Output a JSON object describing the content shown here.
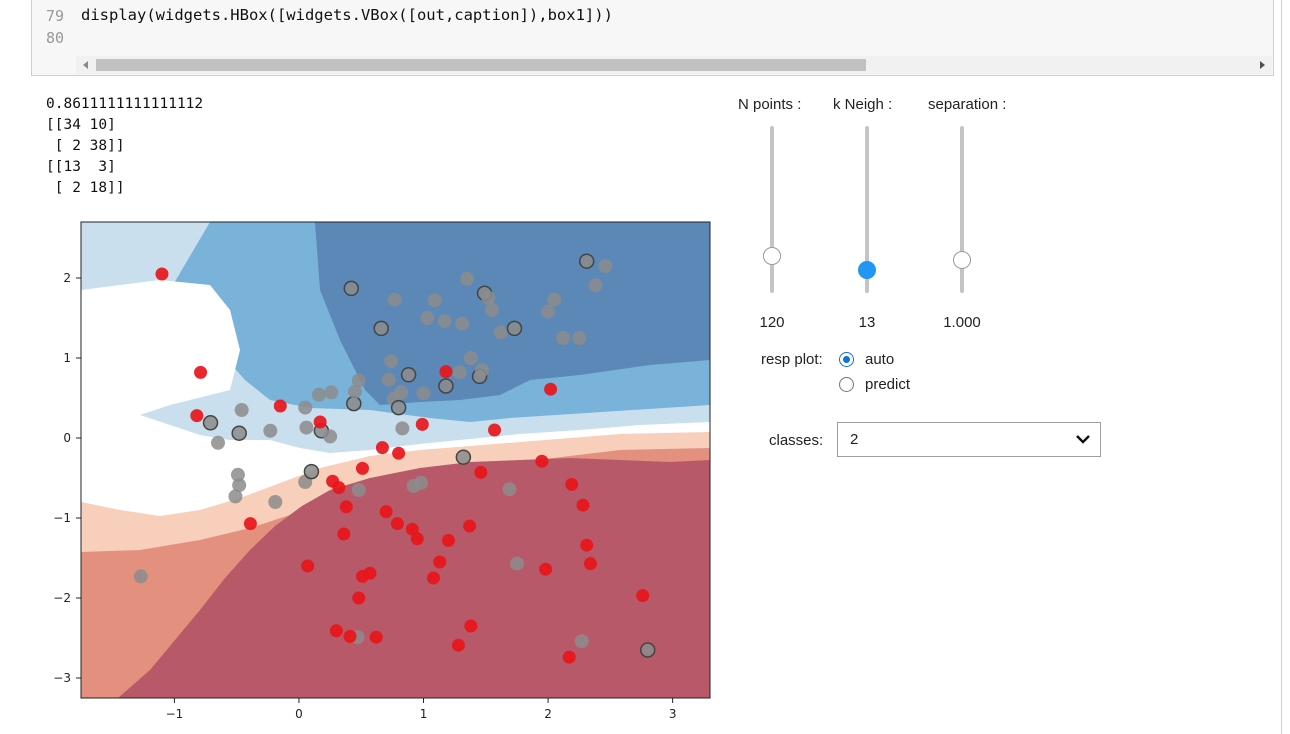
{
  "code": {
    "lines": [
      {
        "num": "79",
        "text": "display(widgets.HBox([widgets.VBox([out,caption]),box1]))"
      },
      {
        "num": "80",
        "text": ""
      }
    ]
  },
  "output": {
    "text": "0.8611111111111112\n[[34 10]\n [ 2 38]]\n[[13  3]\n [ 2 18]]"
  },
  "sliders": [
    {
      "label": "N points :",
      "value_text": "120",
      "fraction": 0.22,
      "active": false
    },
    {
      "label": "k Neigh :",
      "value_text": "13",
      "fraction": 0.14,
      "active": true
    },
    {
      "label": "separation :",
      "value_text": "1.000",
      "fraction": 0.2,
      "active": false
    }
  ],
  "resp_plot": {
    "label": "resp plot:",
    "options": [
      {
        "label": "auto",
        "checked": true
      },
      {
        "label": "predict",
        "checked": false
      }
    ]
  },
  "classes": {
    "label": "classes:",
    "value": "2"
  },
  "chart_data": {
    "type": "scatter",
    "title": "",
    "xlabel": "",
    "ylabel": "",
    "xlim": [
      -1.75,
      3.3
    ],
    "ylim": [
      -3.25,
      2.7
    ],
    "xticks": [
      -1,
      0,
      1,
      2,
      3
    ],
    "yticks": [
      -3,
      -2,
      -1,
      0,
      1,
      2
    ],
    "xtick_labels": [
      "−1",
      "0",
      "1",
      "2",
      "3"
    ],
    "ytick_labels": [
      "−3",
      "−2",
      "−1",
      "0",
      "1",
      "2"
    ],
    "background": "k-nearest-neighbour decision regions, red (negative) to blue (positive)",
    "colors": {
      "red_dark": "#b8596a",
      "red_mid": "#e3907f",
      "red_light": "#f7cfba",
      "neutral": "#ffffff",
      "blue_light": "#c9dfee",
      "blue_mid": "#79b3d9",
      "blue_dark": "#5b88b6",
      "red_point": "#e8151b",
      "gray_point": "#8c8c8c"
    },
    "series": [
      {
        "name": "",
        "color": "#e8151b",
        "points": [
          [
            -1.1,
            2.05
          ],
          [
            -0.79,
            0.82
          ],
          [
            -0.82,
            0.28
          ],
          [
            -0.15,
            0.4
          ],
          [
            0.17,
            0.2
          ],
          [
            0.8,
            -0.19
          ],
          [
            0.67,
            -0.12
          ],
          [
            0.51,
            -0.38
          ],
          [
            0.38,
            -0.86
          ],
          [
            0.7,
            -0.92
          ],
          [
            0.79,
            -1.07
          ],
          [
            0.91,
            -1.14
          ],
          [
            0.95,
            -1.26
          ],
          [
            0.36,
            -1.2
          ],
          [
            0.07,
            -1.6
          ],
          [
            0.48,
            -2.0
          ],
          [
            0.51,
            -1.73
          ],
          [
            0.57,
            -1.69
          ],
          [
            0.3,
            -2.41
          ],
          [
            0.41,
            -2.48
          ],
          [
            0.62,
            -2.49
          ],
          [
            1.08,
            -1.75
          ],
          [
            1.13,
            -1.55
          ],
          [
            1.2,
            -1.28
          ],
          [
            1.37,
            -1.1
          ],
          [
            1.38,
            -2.35
          ],
          [
            1.28,
            -2.59
          ],
          [
            1.46,
            -0.43
          ],
          [
            1.98,
            -1.64
          ],
          [
            2.17,
            -2.74
          ],
          [
            2.19,
            -0.58
          ],
          [
            2.28,
            -0.84
          ],
          [
            2.31,
            -1.34
          ],
          [
            2.34,
            -1.57
          ],
          [
            2.76,
            -1.97
          ],
          [
            0.27,
            -0.54
          ],
          [
            0.32,
            -0.62
          ],
          [
            0.99,
            0.17
          ],
          [
            1.57,
            0.1
          ],
          [
            1.95,
            -0.29
          ],
          [
            2.02,
            0.61
          ],
          [
            1.18,
            0.83
          ],
          [
            -0.39,
            -1.07
          ]
        ]
      },
      {
        "name": "",
        "color": "#8c8c8c",
        "points": [
          [
            0.42,
            1.87
          ],
          [
            0.77,
            1.73
          ],
          [
            1.09,
            1.72
          ],
          [
            1.35,
            1.99
          ],
          [
            1.49,
            1.81
          ],
          [
            1.52,
            1.75
          ],
          [
            1.55,
            1.6
          ],
          [
            1.62,
            1.32
          ],
          [
            1.73,
            1.37
          ],
          [
            2.0,
            1.58
          ],
          [
            2.05,
            1.73
          ],
          [
            2.12,
            1.25
          ],
          [
            2.31,
            2.21
          ],
          [
            2.38,
            1.91
          ],
          [
            2.46,
            2.15
          ],
          [
            2.25,
            1.25
          ],
          [
            0.66,
            1.37
          ],
          [
            0.72,
            0.73
          ],
          [
            0.74,
            0.96
          ],
          [
            0.82,
            0.57
          ],
          [
            0.88,
            0.79
          ],
          [
            1.0,
            0.56
          ],
          [
            1.03,
            1.5
          ],
          [
            1.17,
            1.46
          ],
          [
            1.18,
            0.65
          ],
          [
            1.29,
            0.82
          ],
          [
            1.31,
            1.43
          ],
          [
            1.38,
            1.0
          ],
          [
            1.45,
            0.77
          ],
          [
            1.47,
            0.85
          ],
          [
            0.16,
            0.54
          ],
          [
            0.26,
            0.57
          ],
          [
            0.44,
            0.43
          ],
          [
            0.45,
            0.58
          ],
          [
            0.48,
            0.72
          ],
          [
            0.76,
            0.49
          ],
          [
            0.8,
            0.38
          ],
          [
            0.83,
            0.12
          ],
          [
            0.05,
            0.38
          ],
          [
            0.06,
            0.13
          ],
          [
            0.18,
            0.09
          ],
          [
            0.25,
            0.02
          ],
          [
            -0.23,
            0.09
          ],
          [
            -0.46,
            0.35
          ],
          [
            -0.48,
            0.06
          ],
          [
            -0.49,
            -0.46
          ],
          [
            -0.48,
            -0.59
          ],
          [
            -0.51,
            -0.73
          ],
          [
            -0.71,
            0.19
          ],
          [
            -0.65,
            -0.06
          ],
          [
            -0.19,
            -0.8
          ],
          [
            0.05,
            -0.55
          ],
          [
            0.1,
            -0.42
          ],
          [
            0.48,
            -0.65
          ],
          [
            0.92,
            -0.6
          ],
          [
            0.98,
            -0.56
          ],
          [
            1.32,
            -0.24
          ],
          [
            1.69,
            -0.64
          ],
          [
            1.75,
            -1.57
          ],
          [
            2.27,
            -2.54
          ],
          [
            2.8,
            -2.65
          ],
          [
            0.47,
            -2.49
          ],
          [
            -1.27,
            -1.73
          ]
        ]
      }
    ]
  }
}
